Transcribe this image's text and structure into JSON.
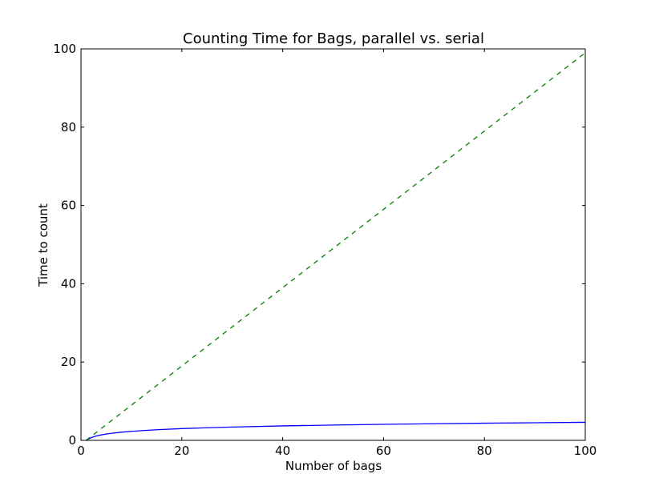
{
  "chart_data": {
    "type": "line",
    "title": "Counting Time for Bags, parallel vs. serial",
    "xlabel": "Number of bags",
    "ylabel": "Time to count",
    "xlim": [
      0,
      100
    ],
    "ylim": [
      0,
      100
    ],
    "xticks": [
      0,
      20,
      40,
      60,
      80,
      100
    ],
    "yticks": [
      0,
      20,
      40,
      60,
      80,
      100
    ],
    "grid": false,
    "series": [
      {
        "color": "#0000ff",
        "style": "solid",
        "x": [
          1,
          2,
          3,
          4,
          5,
          6,
          8,
          10,
          12,
          15,
          20,
          25,
          30,
          40,
          50,
          60,
          70,
          80,
          90,
          100
        ],
        "y": [
          0.0,
          0.69,
          1.1,
          1.39,
          1.61,
          1.79,
          2.08,
          2.3,
          2.48,
          2.71,
          3.0,
          3.22,
          3.4,
          3.69,
          3.91,
          4.09,
          4.25,
          4.38,
          4.5,
          4.61
        ]
      },
      {
        "color": "#008000",
        "style": "dashed",
        "x": [
          1,
          100
        ],
        "y": [
          0,
          99
        ]
      }
    ]
  }
}
